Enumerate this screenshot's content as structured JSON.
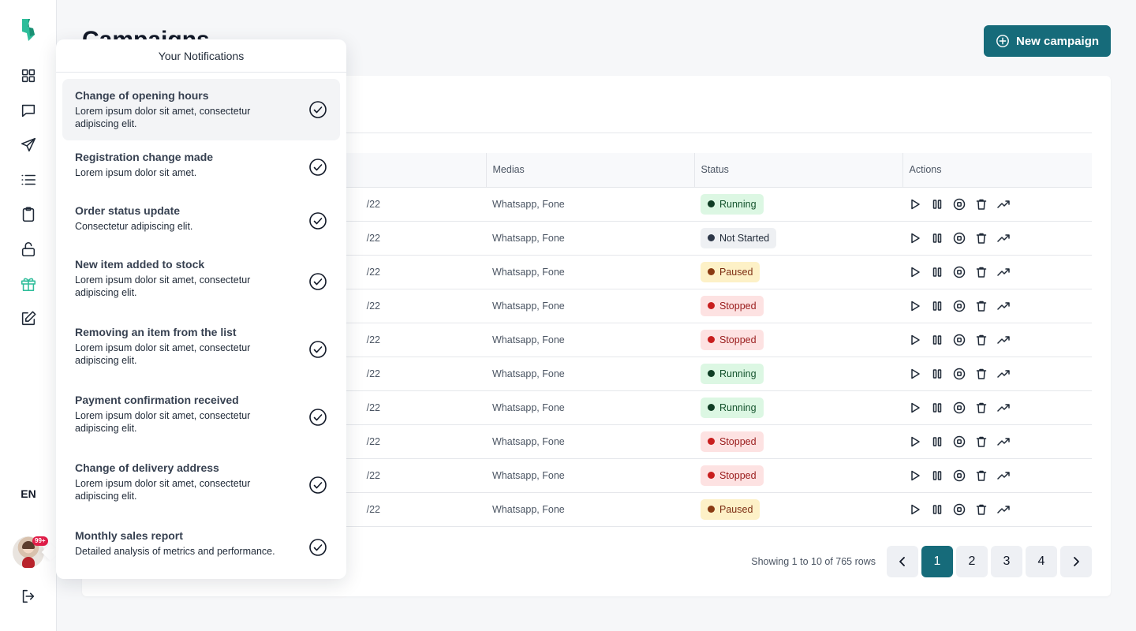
{
  "sidebar": {
    "logo": "brand-logo",
    "accent": "#2dbd9a",
    "items": [
      {
        "icon": "grid-icon"
      },
      {
        "icon": "message-icon"
      },
      {
        "icon": "send-icon"
      },
      {
        "icon": "list-icon"
      },
      {
        "icon": "clipboard-icon"
      },
      {
        "icon": "lock-icon"
      },
      {
        "icon": "gift-icon",
        "active": true
      },
      {
        "icon": "edit-icon"
      }
    ],
    "language": "EN",
    "avatar_badge": "99+"
  },
  "header": {
    "title": "Campaigns",
    "new_button_label": "New campaign"
  },
  "table": {
    "columns": [
      "",
      "Medias",
      "Status",
      "Actions"
    ],
    "rows": [
      {
        "date": "/22",
        "medias": "Whatsapp, Fone",
        "status": "Running"
      },
      {
        "date": "/22",
        "medias": "Whatsapp, Fone",
        "status": "Not Started"
      },
      {
        "date": "/22",
        "medias": "Whatsapp, Fone",
        "status": "Paused"
      },
      {
        "date": "/22",
        "medias": "Whatsapp, Fone",
        "status": "Stopped"
      },
      {
        "date": "/22",
        "medias": "Whatsapp, Fone",
        "status": "Stopped"
      },
      {
        "date": "/22",
        "medias": "Whatsapp, Fone",
        "status": "Running"
      },
      {
        "date": "/22",
        "medias": "Whatsapp, Fone",
        "status": "Running"
      },
      {
        "date": "/22",
        "medias": "Whatsapp, Fone",
        "status": "Stopped"
      },
      {
        "date": "/22",
        "medias": "Whatsapp, Fone",
        "status": "Stopped"
      },
      {
        "date": "/22",
        "medias": "Whatsapp, Fone",
        "status": "Paused"
      }
    ],
    "action_icons": [
      "play-icon",
      "pause-icon",
      "stop-icon",
      "trash-icon",
      "trending-up-icon"
    ]
  },
  "status_styles": {
    "Running": {
      "bg": "#dcf7e3",
      "dot": "#0f3d24",
      "text": "#14532d"
    },
    "Not Started": {
      "bg": "#eef0f3",
      "dot": "#2d3748",
      "text": "#1f2937"
    },
    "Paused": {
      "bg": "#fdf1c7",
      "dot": "#8a3b12",
      "text": "#7c2d12"
    },
    "Stopped": {
      "bg": "#fde2e2",
      "dot": "#c81e1e",
      "text": "#991b1b"
    }
  },
  "pagination": {
    "info": "Showing 1 to 10 of 765 rows",
    "pages": [
      "1",
      "2",
      "3",
      "4"
    ],
    "current": "1",
    "primary_color": "#166b7a"
  },
  "notifications": {
    "title": "Your Notifications",
    "items": [
      {
        "title": "Change of opening hours",
        "desc": "Lorem ipsum dolor sit amet, consectetur adipiscing elit.",
        "selected": true
      },
      {
        "title": "Registration change made",
        "desc": "Lorem ipsum dolor sit amet."
      },
      {
        "title": "Order status update",
        "desc": "Consectetur adipiscing elit."
      },
      {
        "title": "New item added to stock",
        "desc": "Lorem ipsum dolor sit amet, consectetur adipiscing elit."
      },
      {
        "title": "Removing an item from the list",
        "desc": "Lorem ipsum dolor sit amet, consectetur adipiscing elit."
      },
      {
        "title": "Payment confirmation received",
        "desc": "Lorem ipsum dolor sit amet, consectetur adipiscing elit."
      },
      {
        "title": "Change of delivery address",
        "desc": "Lorem ipsum dolor sit amet, consectetur adipiscing elit."
      },
      {
        "title": "Monthly sales report",
        "desc": "Detailed analysis of metrics and performance."
      }
    ]
  }
}
